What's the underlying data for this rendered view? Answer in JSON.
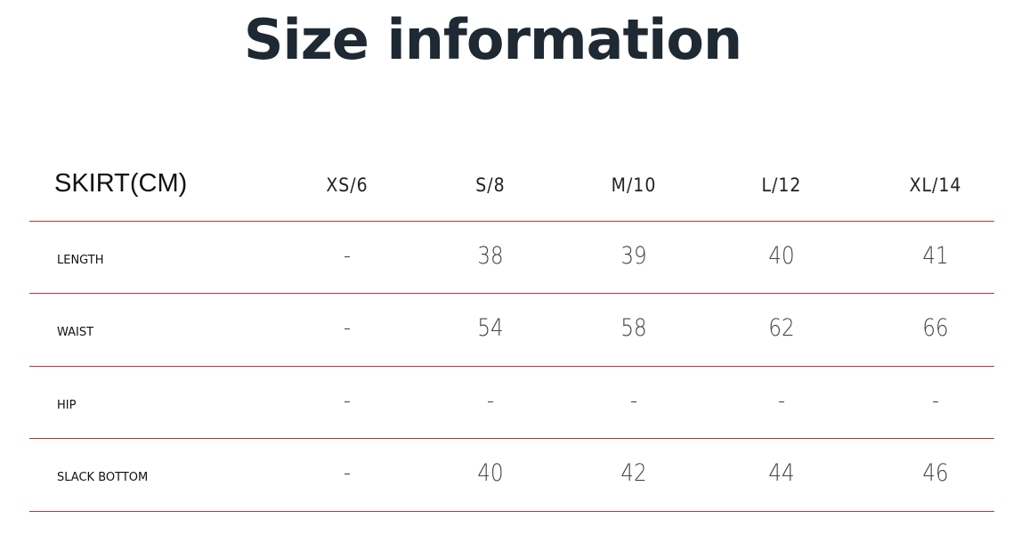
{
  "title": "Size information",
  "table": {
    "header_label": "SKIRT(CM)",
    "columns": [
      "XS/6",
      "S/8",
      "M/10",
      "L/12",
      "XL/14"
    ],
    "rows": [
      {
        "label": "LENGTH",
        "values": [
          "-",
          "38",
          "39",
          "40",
          "41"
        ]
      },
      {
        "label": "WAIST",
        "values": [
          "-",
          "54",
          "58",
          "62",
          "66"
        ]
      },
      {
        "label": "HIP",
        "values": [
          "-",
          "-",
          "-",
          "-",
          "-"
        ]
      },
      {
        "label": "SLACK BOTTOM",
        "values": [
          "-",
          "40",
          "42",
          "44",
          "46"
        ]
      }
    ]
  },
  "colors": {
    "divider": "#b5363c",
    "title": "#1f2933"
  }
}
